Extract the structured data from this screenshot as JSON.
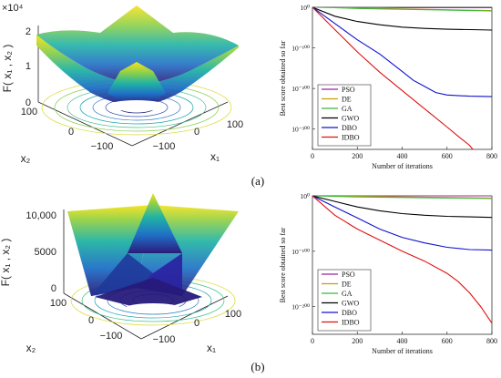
{
  "chart_data": [
    {
      "type": "surface",
      "panel": "a-surface",
      "zlabel": "F( x₁ , x₂ )",
      "xlabel": "x₁",
      "ylabel": "x₂",
      "z_exponent_label": "×10⁴",
      "z_ticks": [
        "0",
        "1",
        "2"
      ],
      "x_ticks": [
        "−100",
        "0",
        "100"
      ],
      "y_ticks": [
        "−100",
        "0",
        "100"
      ],
      "zlim": [
        0,
        20000
      ],
      "xlim": [
        -100,
        100
      ],
      "ylim": [
        -100,
        100
      ]
    },
    {
      "type": "line",
      "panel": "a-convergence",
      "xlabel": "Number of iterations",
      "ylabel": "Best score obtained so far",
      "yscale": "log",
      "xlim": [
        0,
        800
      ],
      "ylim_exp": [
        -350,
        0
      ],
      "x_ticks": [
        "0",
        "200",
        "400",
        "600",
        "800"
      ],
      "y_ticks": [
        "10⁰",
        "10⁻¹⁰⁰",
        "10⁻²⁰⁰",
        "10⁻³⁰⁰"
      ],
      "legend_position": "bottom-left",
      "caption": "(a)",
      "series": [
        {
          "name": "PSO",
          "color": "#a020a0",
          "x": [
            0,
            100,
            200,
            400,
            600,
            800
          ],
          "log10_y": [
            3,
            1,
            0,
            -1,
            -1,
            -1
          ]
        },
        {
          "name": "DE",
          "color": "#c8a000",
          "x": [
            0,
            100,
            200,
            400,
            600,
            800
          ],
          "log10_y": [
            3,
            0,
            -2,
            -4,
            -6,
            -8
          ]
        },
        {
          "name": "GA",
          "color": "#3cb83c",
          "x": [
            0,
            100,
            200,
            400,
            600,
            800
          ],
          "log10_y": [
            3,
            -1,
            -3,
            -5,
            -7,
            -9
          ]
        },
        {
          "name": "GWO",
          "color": "#000000",
          "x": [
            0,
            100,
            200,
            300,
            400,
            500,
            600,
            700,
            800
          ],
          "log10_y": [
            0,
            -22,
            -35,
            -43,
            -49,
            -52,
            -54,
            -55,
            -56
          ]
        },
        {
          "name": "DBO",
          "color": "#1010d0",
          "x": [
            0,
            100,
            200,
            300,
            400,
            450,
            500,
            550,
            600,
            700,
            800
          ],
          "log10_y": [
            0,
            -40,
            -80,
            -115,
            -158,
            -180,
            -195,
            -210,
            -216,
            -219,
            -220
          ]
        },
        {
          "name": "IDBO",
          "color": "#e01010",
          "x": [
            0,
            100,
            200,
            300,
            400,
            500,
            600,
            650,
            700,
            730
          ],
          "log10_y": [
            0,
            -55,
            -110,
            -160,
            -205,
            -250,
            -295,
            -318,
            -340,
            -360
          ]
        }
      ]
    },
    {
      "type": "surface",
      "panel": "b-surface",
      "zlabel": "F( x₁ , x₂ )",
      "xlabel": "x₁",
      "ylabel": "x₂",
      "z_ticks": [
        "0",
        "5000",
        "10,000"
      ],
      "x_ticks": [
        "−100",
        "0",
        "100"
      ],
      "y_ticks": [
        "−100",
        "0",
        "100"
      ],
      "zlim": [
        0,
        10000
      ],
      "xlim": [
        -100,
        100
      ],
      "ylim": [
        -100,
        100
      ]
    },
    {
      "type": "line",
      "panel": "b-convergence",
      "xlabel": "Number of iterations",
      "ylabel": "Best score obtained so far",
      "yscale": "log",
      "xlim": [
        0,
        800
      ],
      "ylim_exp": [
        -250,
        0
      ],
      "x_ticks": [
        "0",
        "200",
        "400",
        "600",
        "800"
      ],
      "y_ticks": [
        "10⁰",
        "10⁻¹⁰⁰",
        "10⁻²⁰⁰"
      ],
      "legend_position": "bottom-left",
      "caption": "(b)",
      "series": [
        {
          "name": "PSO",
          "color": "#a020a0",
          "x": [
            0,
            100,
            200,
            400,
            600,
            800
          ],
          "log10_y": [
            2,
            1,
            0,
            0,
            0,
            0
          ]
        },
        {
          "name": "DE",
          "color": "#c8a000",
          "x": [
            0,
            100,
            200,
            400,
            600,
            800
          ],
          "log10_y": [
            2,
            0,
            -1,
            -2,
            -3,
            -4
          ]
        },
        {
          "name": "GA",
          "color": "#3cb83c",
          "x": [
            0,
            100,
            200,
            400,
            600,
            800
          ],
          "log10_y": [
            2,
            -1,
            -2,
            -3,
            -4,
            -5
          ]
        },
        {
          "name": "GWO",
          "color": "#000000",
          "x": [
            0,
            100,
            200,
            300,
            400,
            500,
            600,
            700,
            800
          ],
          "log10_y": [
            0,
            -10,
            -20,
            -27,
            -32,
            -35,
            -37,
            -38,
            -39
          ]
        },
        {
          "name": "DBO",
          "color": "#1010d0",
          "x": [
            0,
            100,
            200,
            300,
            400,
            500,
            600,
            700,
            800
          ],
          "log10_y": [
            0,
            -20,
            -40,
            -60,
            -75,
            -85,
            -93,
            -97,
            -98
          ]
        },
        {
          "name": "IDBO",
          "color": "#e01010",
          "x": [
            0,
            100,
            200,
            300,
            400,
            500,
            600,
            650,
            700,
            750,
            800
          ],
          "log10_y": [
            0,
            -35,
            -60,
            -80,
            -100,
            -118,
            -140,
            -155,
            -175,
            -200,
            -230
          ]
        }
      ]
    }
  ]
}
